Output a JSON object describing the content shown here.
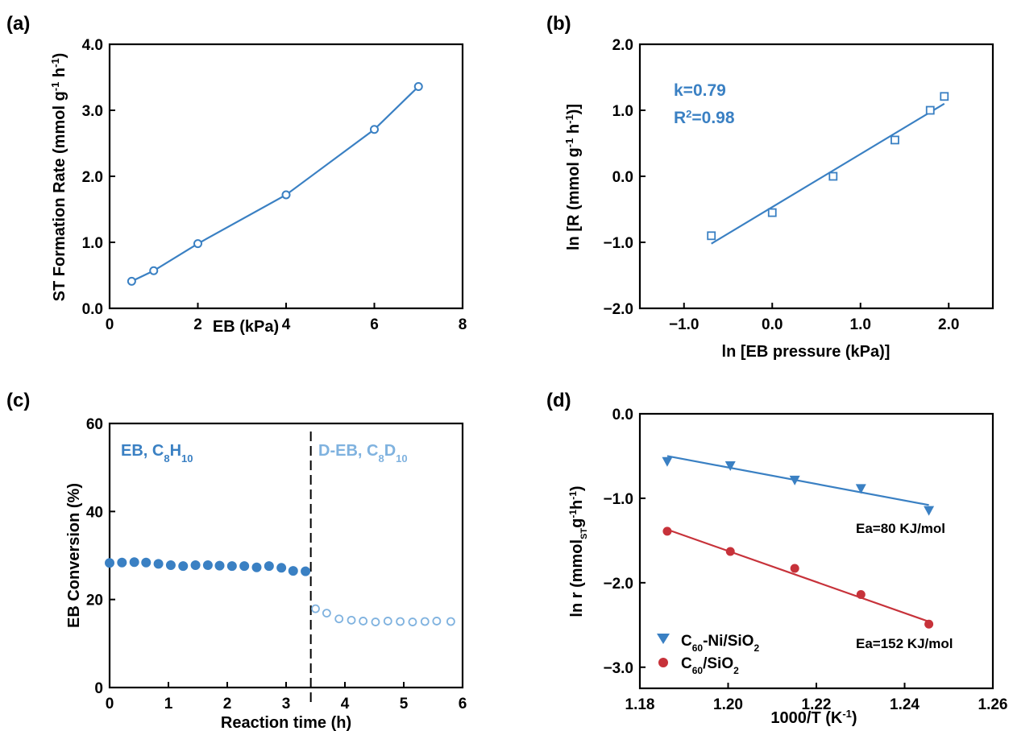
{
  "chart_data": [
    {
      "panel": "(a)",
      "type": "line",
      "xlabel": "EB (kPa)",
      "ylabel": "ST Formation Rate (mmol g",
      "ylabel_sup1": "-1",
      "ylabel_mid": " h",
      "ylabel_sup2": "-1",
      "ylabel_end": ")",
      "xlim": [
        0,
        8
      ],
      "ylim": [
        0,
        4
      ],
      "xticks": [
        0,
        2,
        4,
        6,
        8
      ],
      "xtick_labels": [
        "0",
        "2",
        "4",
        "6",
        "8"
      ],
      "yticks": [
        0,
        1,
        2,
        3,
        4
      ],
      "ytick_labels": [
        "0.0",
        "1.0",
        "2.0",
        "3.0",
        "4.0"
      ],
      "series": [
        {
          "x": [
            0.5,
            1,
            2,
            4,
            6,
            7
          ],
          "y": [
            0.41,
            0.57,
            0.98,
            1.72,
            2.71,
            3.36
          ],
          "color": "#3a80c3",
          "marker": "open-circle"
        }
      ]
    },
    {
      "panel": "(b)",
      "type": "scatter",
      "xlabel": "ln [EB pressure (kPa)]",
      "ylabel": "ln [R (mmol g",
      "ylabel_sup1": "-1",
      "ylabel_mid": " h",
      "ylabel_sup2": "-1",
      "ylabel_end": ")]",
      "xlim": [
        -1.5,
        2.5
      ],
      "ylim": [
        -2,
        2
      ],
      "xticks": [
        -1,
        0,
        1,
        2
      ],
      "xtick_labels": [
        "−1.0",
        "0.0",
        "1.0",
        "2.0"
      ],
      "yticks": [
        -2,
        -1,
        0,
        1,
        2
      ],
      "ytick_labels": [
        "−2.0",
        "−1.0",
        "0.0",
        "1.0",
        "2.0"
      ],
      "series": [
        {
          "x": [
            -0.69,
            0,
            0.69,
            1.39,
            1.79,
            1.95
          ],
          "y": [
            -0.9,
            -0.55,
            0.0,
            0.55,
            1.0,
            1.21
          ],
          "color": "#3a80c3",
          "marker": "open-square"
        }
      ],
      "fit": {
        "x": [
          -0.69,
          1.95
        ],
        "y": [
          -1.02,
          1.1
        ],
        "color": "#3a80c3"
      },
      "annotations": {
        "k": "k=0.79",
        "r2_pre": "R",
        "r2_sup": "2",
        "r2_post": "=0.98"
      }
    },
    {
      "panel": "(c)",
      "type": "scatter",
      "xlabel": "Reaction time (h)",
      "ylabel": "EB Conversion (%)",
      "xlim": [
        0,
        6
      ],
      "ylim": [
        0,
        60
      ],
      "xticks": [
        0,
        1,
        2,
        3,
        4,
        5,
        6
      ],
      "xtick_labels": [
        "0",
        "1",
        "2",
        "3",
        "4",
        "5",
        "6"
      ],
      "yticks": [
        0,
        20,
        40,
        60
      ],
      "ytick_labels": [
        "0",
        "20",
        "40",
        "60"
      ],
      "divider_x": 3.42,
      "series": [
        {
          "x": [
            0,
            0.21,
            0.42,
            0.62,
            0.83,
            1.04,
            1.25,
            1.46,
            1.67,
            1.87,
            2.08,
            2.29,
            2.5,
            2.71,
            2.92,
            3.12,
            3.33
          ],
          "y": [
            28.3,
            28.4,
            28.5,
            28.4,
            28.1,
            27.8,
            27.6,
            27.8,
            27.8,
            27.7,
            27.6,
            27.6,
            27.3,
            27.6,
            27.2,
            26.5,
            26.4
          ],
          "color": "#3a80c3",
          "marker": "filled-circle"
        },
        {
          "x": [
            3.5,
            3.69,
            3.9,
            4.11,
            4.31,
            4.52,
            4.73,
            4.94,
            5.15,
            5.36,
            5.56,
            5.8
          ],
          "y": [
            17.9,
            16.9,
            15.6,
            15.3,
            15.1,
            14.9,
            15.1,
            15.0,
            14.9,
            15.0,
            15.1,
            15.0
          ],
          "color": "#7fb2df",
          "marker": "open-circle"
        }
      ],
      "annotations": {
        "left_pre": "EB, C",
        "left_sub1": "8",
        "left_mid": "H",
        "left_sub2": "10",
        "right_pre": "D-EB, C",
        "right_sub1": "8",
        "right_mid": "D",
        "right_sub2": "10"
      }
    },
    {
      "panel": "(d)",
      "type": "scatter",
      "xlabel_pre": "1000/T (K",
      "xlabel_sup": "-1",
      "xlabel_post": ")",
      "ylabel_pre": "ln r (mmol",
      "ylabel_sub": "ST",
      "ylabel_mid1": "g",
      "ylabel_sup1": "-1",
      "ylabel_mid2": "h",
      "ylabel_sup2": "-1",
      "ylabel_end": ")",
      "xlim": [
        1.18,
        1.26
      ],
      "ylim": [
        -3.25,
        0
      ],
      "xticks": [
        1.18,
        1.2,
        1.22,
        1.24,
        1.26
      ],
      "xtick_labels": [
        "1.18",
        "1.20",
        "1.22",
        "1.24",
        "1.26"
      ],
      "yticks": [
        -3,
        -2,
        -1,
        0
      ],
      "ytick_labels": [
        "−3.0",
        "−2.0",
        "−1.0",
        "0.0"
      ],
      "series": [
        {
          "name_pre": "C",
          "name_sub": "60",
          "name_mid": "-Ni/SiO",
          "name_sub2": "2",
          "x": [
            1.1862,
            1.2005,
            1.2151,
            1.2301,
            1.2455
          ],
          "y": [
            -0.56,
            -0.61,
            -0.78,
            -0.88,
            -1.14
          ],
          "color": "#3a80c3",
          "marker": "filled-triangle-down",
          "fit": {
            "x": [
              1.1862,
              1.2455
            ],
            "y": [
              -0.5,
              -1.08
            ]
          }
        },
        {
          "name_pre": "C",
          "name_sub": "60",
          "name_mid": "/SiO",
          "name_sub2": "2",
          "x": [
            1.1862,
            1.2005,
            1.2151,
            1.2301,
            1.2455
          ],
          "y": [
            -1.39,
            -1.63,
            -1.83,
            -2.14,
            -2.49
          ],
          "color": "#c7323a",
          "marker": "filled-circle",
          "fit": {
            "x": [
              1.1862,
              1.2455
            ],
            "y": [
              -1.37,
              -2.46
            ]
          }
        }
      ],
      "annotations": {
        "ea1": "Ea=80 KJ/mol",
        "ea2": "Ea=152 KJ/mol"
      }
    }
  ]
}
